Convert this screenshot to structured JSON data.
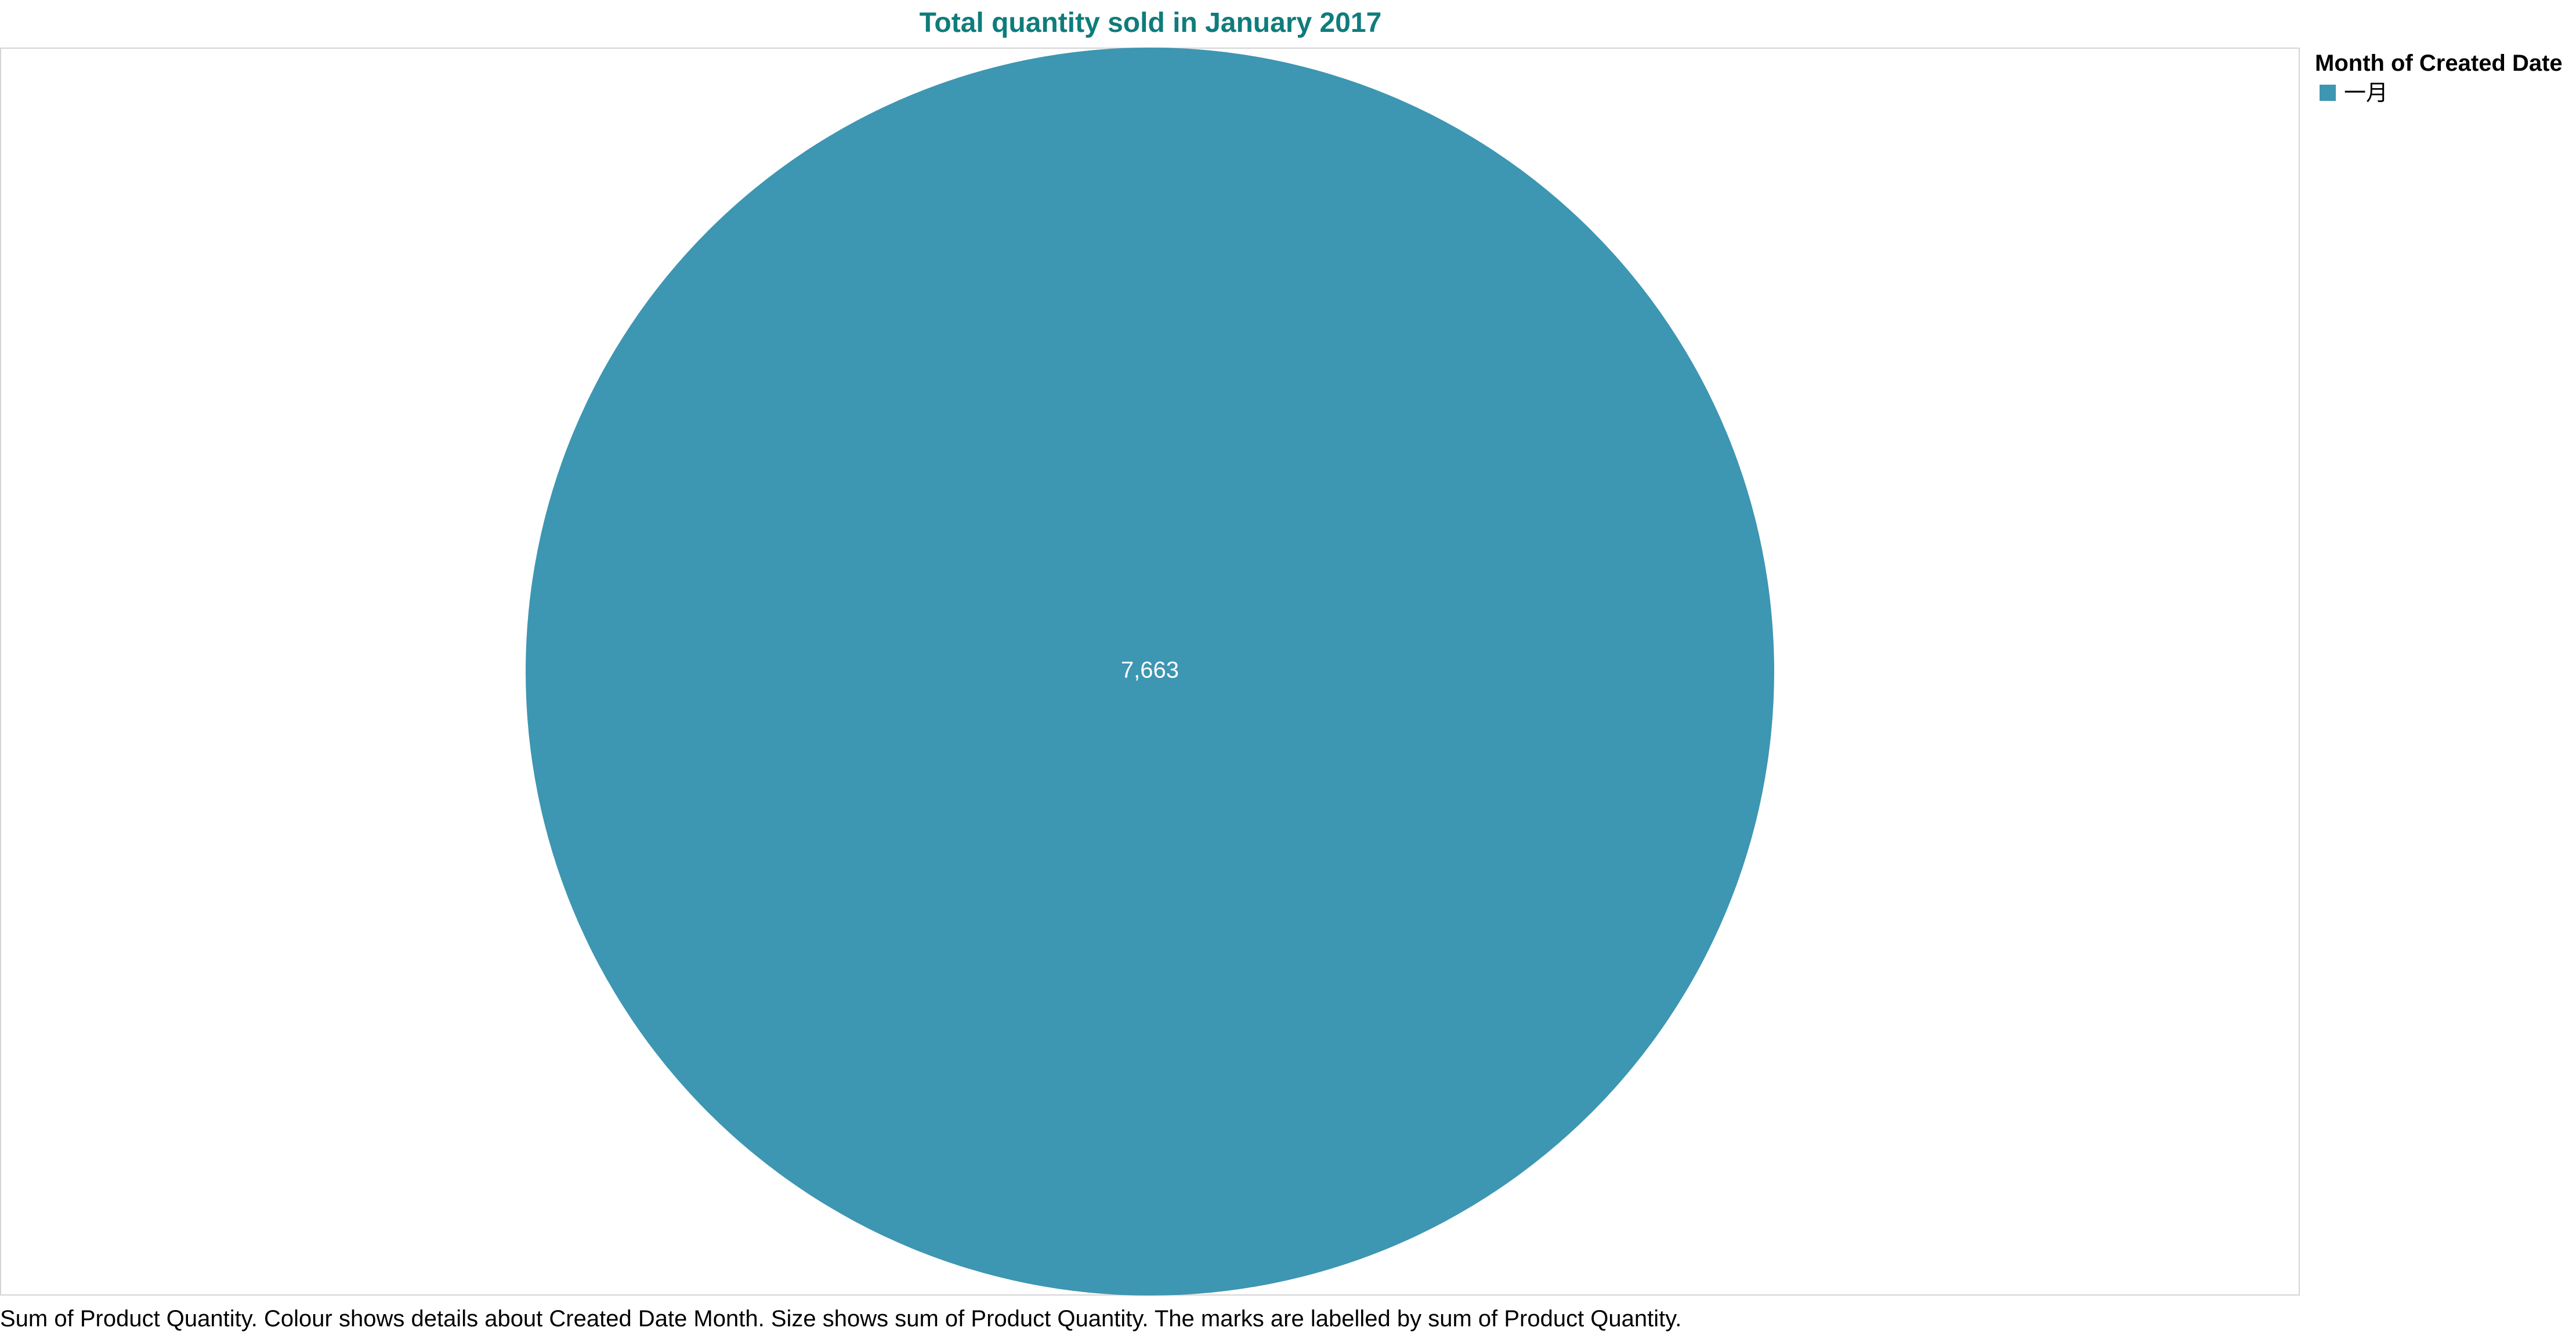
{
  "chart_data": {
    "type": "pie",
    "title": "Total quantity sold in January 2017",
    "categories": [
      "一月"
    ],
    "values": [
      7663
    ],
    "value_labels": [
      "7,663"
    ],
    "colors": [
      "#3d96b2"
    ],
    "legend": {
      "title": "Month of Created Date",
      "placement": "right",
      "items": [
        {
          "label": "一月",
          "color": "#3d96b2"
        }
      ]
    },
    "caption": "Sum of Product Quantity. Colour shows details about Created Date Month. Size shows sum of Product Quantity. The marks are labelled by sum of Product Quantity."
  }
}
